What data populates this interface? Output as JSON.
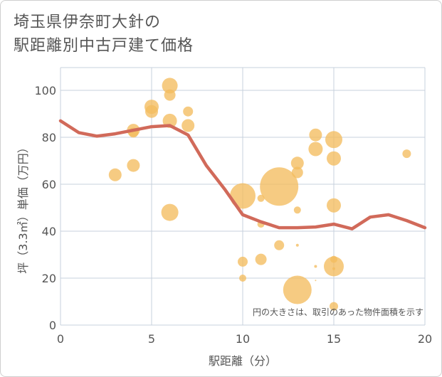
{
  "title_line1": "埼玉県伊奈町大針の",
  "title_line2": "駅距離別中古戸建て価格",
  "chart_data": {
    "type": "scatter",
    "xlabel": "駅距離（分）",
    "ylabel": "坪（3.3㎡）単価（万円）",
    "xlim": [
      0,
      20
    ],
    "ylim": [
      0,
      110
    ],
    "xticks": [
      "0",
      "5",
      "10",
      "15",
      "20"
    ],
    "yticks": [
      "0",
      "20",
      "40",
      "60",
      "80",
      "100"
    ],
    "annotation": "円の大きさは、取引のあった物件面積を示す",
    "grid": true,
    "bubble_color": "#f3bd5f",
    "line_color": "#d16a5a",
    "points": [
      {
        "x": 3,
        "y": 64,
        "size": 9
      },
      {
        "x": 4,
        "y": 83,
        "size": 9
      },
      {
        "x": 4,
        "y": 82,
        "size": 7
      },
      {
        "x": 4,
        "y": 68,
        "size": 9
      },
      {
        "x": 5,
        "y": 93,
        "size": 10
      },
      {
        "x": 5,
        "y": 91,
        "size": 9
      },
      {
        "x": 6,
        "y": 102,
        "size": 11
      },
      {
        "x": 6,
        "y": 98,
        "size": 8
      },
      {
        "x": 6,
        "y": 87,
        "size": 10
      },
      {
        "x": 6,
        "y": 48,
        "size": 12
      },
      {
        "x": 7,
        "y": 91,
        "size": 7
      },
      {
        "x": 7,
        "y": 85,
        "size": 9
      },
      {
        "x": 10,
        "y": 55,
        "size": 18
      },
      {
        "x": 10,
        "y": 27,
        "size": 7
      },
      {
        "x": 10,
        "y": 20,
        "size": 5
      },
      {
        "x": 11,
        "y": 54,
        "size": 5
      },
      {
        "x": 11,
        "y": 43,
        "size": 5
      },
      {
        "x": 11,
        "y": 28,
        "size": 8
      },
      {
        "x": 12,
        "y": 59,
        "size": 27
      },
      {
        "x": 12,
        "y": 34,
        "size": 7
      },
      {
        "x": 13,
        "y": 69,
        "size": 9
      },
      {
        "x": 13,
        "y": 65,
        "size": 8
      },
      {
        "x": 13,
        "y": 49,
        "size": 5
      },
      {
        "x": 13,
        "y": 34,
        "size": 2
      },
      {
        "x": 13,
        "y": 15,
        "size": 20
      },
      {
        "x": 14,
        "y": 81,
        "size": 9
      },
      {
        "x": 14,
        "y": 75,
        "size": 10
      },
      {
        "x": 14,
        "y": 25,
        "size": 2
      },
      {
        "x": 14,
        "y": 19,
        "size": 1
      },
      {
        "x": 15,
        "y": 79,
        "size": 12
      },
      {
        "x": 15,
        "y": 71,
        "size": 10
      },
      {
        "x": 15,
        "y": 51,
        "size": 10
      },
      {
        "x": 15,
        "y": 28,
        "size": 5
      },
      {
        "x": 15,
        "y": 25,
        "size": 14
      },
      {
        "x": 15,
        "y": 24,
        "size": 2
      },
      {
        "x": 15,
        "y": 8,
        "size": 6
      },
      {
        "x": 19,
        "y": 73,
        "size": 6
      }
    ],
    "trend": {
      "x": [
        0,
        1,
        2,
        3,
        4,
        5,
        6,
        7,
        8,
        9,
        10,
        11,
        12,
        13,
        14,
        15,
        16,
        17,
        18,
        19,
        20
      ],
      "y": [
        87,
        82,
        80.5,
        81.5,
        83,
        84.5,
        85,
        81,
        68,
        58,
        47,
        44,
        41.5,
        41.5,
        41.8,
        43,
        41,
        46,
        47,
        44.5,
        41.5
      ]
    }
  }
}
